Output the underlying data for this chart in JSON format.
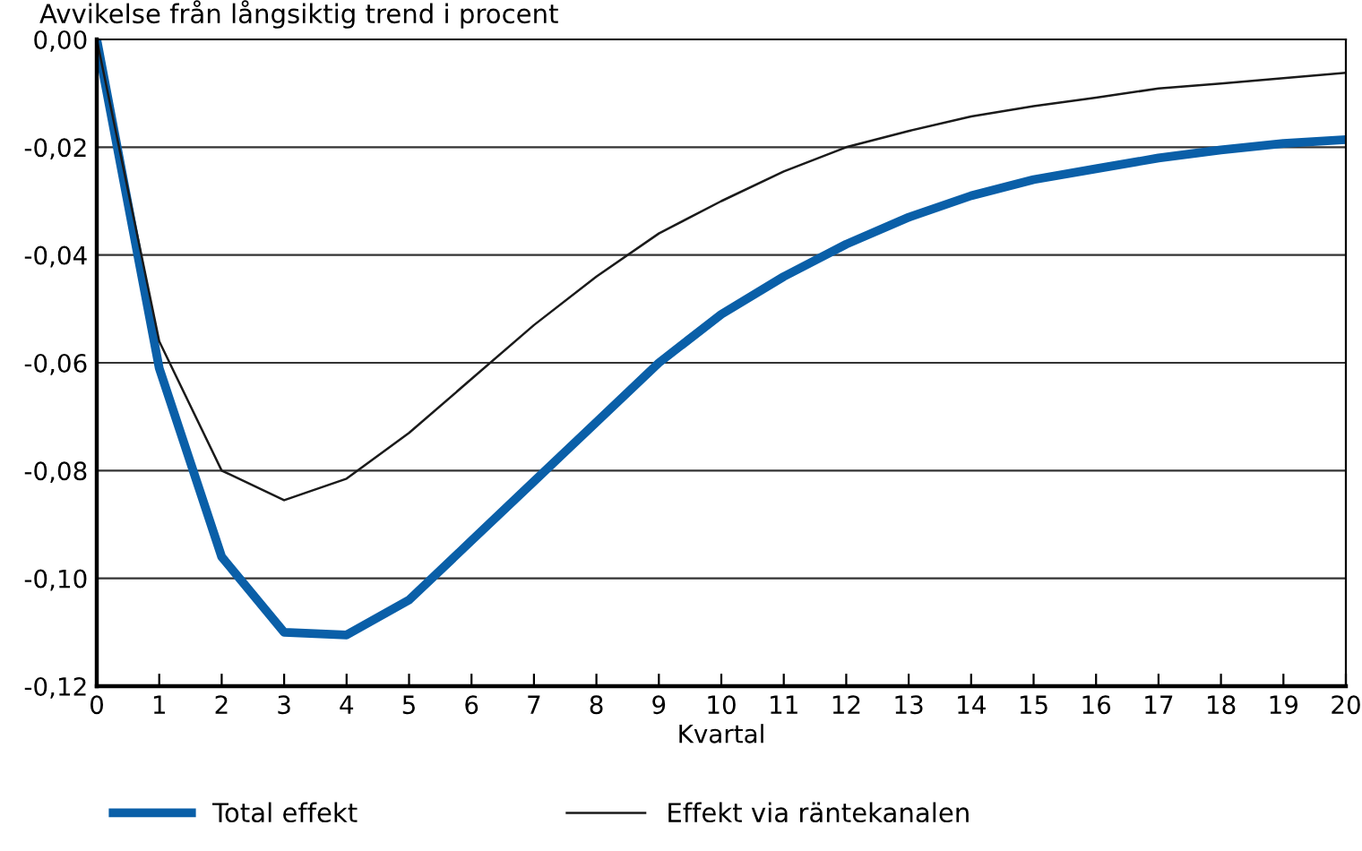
{
  "chart_data": {
    "type": "line",
    "title": "Avvikelse från långsiktig trend i procent",
    "xlabel": "Kvartal",
    "x": [
      0,
      1,
      2,
      3,
      4,
      5,
      6,
      7,
      8,
      9,
      10,
      11,
      12,
      13,
      14,
      15,
      16,
      17,
      18,
      19,
      20
    ],
    "series": [
      {
        "name": "Total effekt",
        "color": "#0a5fa8",
        "values": [
          0,
          -0.061,
          -0.096,
          -0.11,
          -0.1105,
          -0.104,
          -0.093,
          -0.082,
          -0.071,
          -0.06,
          -0.051,
          -0.044,
          -0.038,
          -0.033,
          -0.029,
          -0.026,
          -0.024,
          -0.022,
          -0.0205,
          -0.0193,
          -0.0186
        ]
      },
      {
        "name": "Effekt via räntekanalen",
        "color": "#1a1a1a",
        "values": [
          0,
          -0.056,
          -0.08,
          -0.0855,
          -0.0815,
          -0.073,
          -0.063,
          -0.053,
          -0.044,
          -0.036,
          -0.03,
          -0.0245,
          -0.02,
          -0.017,
          -0.0143,
          -0.0124,
          -0.0108,
          -0.0091,
          -0.0082,
          -0.0072,
          -0.0062
        ]
      }
    ],
    "xlim": [
      0,
      20
    ],
    "xticks": [
      0,
      1,
      2,
      3,
      4,
      5,
      6,
      7,
      8,
      9,
      10,
      11,
      12,
      13,
      14,
      15,
      16,
      17,
      18,
      19,
      20
    ],
    "ylim": [
      -0.12,
      0
    ],
    "yticks": [
      {
        "value": -0.12,
        "label": "-0,12"
      },
      {
        "value": -0.1,
        "label": "-0,10"
      },
      {
        "value": -0.08,
        "label": "-0,08"
      },
      {
        "value": -0.06,
        "label": "-0,06"
      },
      {
        "value": -0.04,
        "label": "-0,04"
      },
      {
        "value": -0.02,
        "label": "-0,02"
      },
      {
        "value": 0,
        "label": "0,00"
      }
    ],
    "grid": "y",
    "legend": "bottom",
    "line_style": "solid",
    "marker": "none"
  }
}
